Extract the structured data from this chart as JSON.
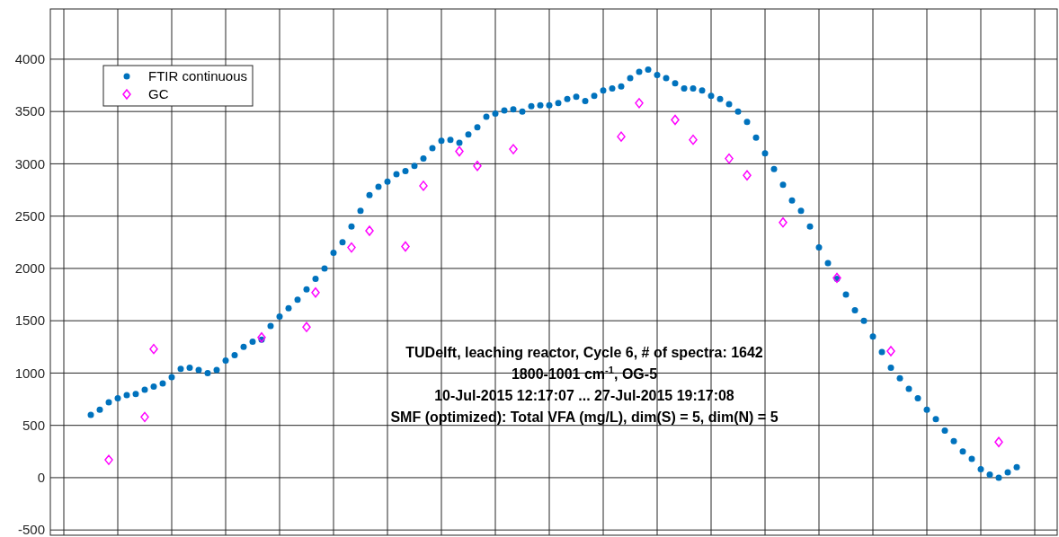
{
  "chart_data": {
    "type": "scatter",
    "categories": [
      null,
      null,
      null,
      null,
      null,
      null,
      null,
      null,
      null,
      null,
      null,
      null,
      null,
      null,
      null,
      null,
      null,
      null,
      null,
      null,
      null,
      null,
      null,
      null,
      null,
      null,
      null,
      null,
      null,
      null,
      null,
      null,
      null,
      null,
      null,
      null,
      null,
      null,
      null,
      null,
      null,
      null,
      null,
      null,
      null,
      null,
      null,
      null,
      null,
      null,
      null,
      null,
      null,
      null,
      null,
      null,
      null,
      null,
      null,
      null,
      null,
      null,
      null,
      null,
      null,
      null,
      null,
      null,
      null,
      null,
      null,
      null,
      null,
      null,
      null,
      null,
      null,
      null,
      null,
      null,
      null,
      null,
      null,
      null,
      null,
      null,
      null,
      null,
      null,
      null,
      null,
      null,
      null,
      null,
      null,
      null,
      null,
      null,
      null,
      null,
      null,
      null,
      null,
      null,
      null,
      null,
      null,
      null,
      null,
      null,
      null,
      null
    ],
    "series": [
      {
        "name": "FTIR continuous",
        "color": "#0072bd",
        "marker": "circle",
        "values": [
          null,
          null,
          null,
          null,
          600,
          650,
          720,
          760,
          790,
          800,
          840,
          870,
          900,
          960,
          1040,
          1050,
          1030,
          1000,
          1030,
          1120,
          1170,
          1250,
          1300,
          1320,
          1450,
          1540,
          1620,
          1700,
          1800,
          1900,
          2000,
          2150,
          2250,
          2400,
          2550,
          2700,
          2780,
          2830,
          2900,
          2930,
          2980,
          3050,
          3150,
          3220,
          3230,
          3200,
          3280,
          3350,
          3450,
          3480,
          3510,
          3520,
          3500,
          3550,
          3560,
          3560,
          3580,
          3620,
          3640,
          3600,
          3650,
          3700,
          3720,
          3740,
          3820,
          3880,
          3900,
          3850,
          3820,
          3770,
          3720,
          3720,
          3700,
          3650,
          3620,
          3570,
          3500,
          3400,
          3250,
          3100,
          2950,
          2800,
          2650,
          2550,
          2400,
          2200,
          2050,
          1900,
          1750,
          1600,
          1500,
          1350,
          1200,
          1050,
          950,
          850,
          760,
          650,
          560,
          450,
          350,
          250,
          180,
          80,
          30,
          0,
          50,
          100,
          null,
          null,
          null,
          null
        ]
      },
      {
        "name": "GC",
        "color": "#ff00ff",
        "marker": "diamond",
        "values": [
          null,
          null,
          null,
          null,
          null,
          null,
          170,
          null,
          null,
          null,
          580,
          1230,
          null,
          null,
          null,
          null,
          null,
          null,
          null,
          null,
          null,
          null,
          null,
          1340,
          null,
          null,
          null,
          null,
          1440,
          1770,
          null,
          null,
          null,
          2200,
          null,
          2360,
          null,
          null,
          null,
          2210,
          null,
          2790,
          null,
          null,
          null,
          3120,
          null,
          2980,
          null,
          null,
          null,
          3140,
          null,
          null,
          null,
          null,
          null,
          null,
          null,
          null,
          null,
          null,
          null,
          3260,
          null,
          3580,
          null,
          null,
          null,
          3420,
          null,
          3230,
          null,
          null,
          null,
          3050,
          null,
          2890,
          null,
          null,
          null,
          2440,
          null,
          null,
          null,
          null,
          null,
          1910,
          null,
          null,
          null,
          null,
          null,
          1210,
          null,
          null,
          null,
          null,
          null,
          null,
          null,
          null,
          null,
          null,
          null,
          340,
          null,
          null,
          null,
          null,
          null,
          null
        ]
      }
    ],
    "ylim": [
      -550,
      4480
    ],
    "yticks": [
      -500,
      0,
      500,
      1000,
      1500,
      2000,
      2500,
      3000,
      3500,
      4000
    ],
    "grid": true,
    "legend": "top left",
    "tick_labels": "y",
    "annotations": [
      "TUDelft, leaching reactor, Cycle 6, # of spectra: 1642",
      "1800-1001 cm$^{-1}$, OG-5",
      "10-Jul-2015 12:17:07 ... 27-Jul-2015 19:17:08",
      "SMF (optimized): Total VFA (mg/L), dim(S) = 5, dim(N) = 5"
    ]
  }
}
